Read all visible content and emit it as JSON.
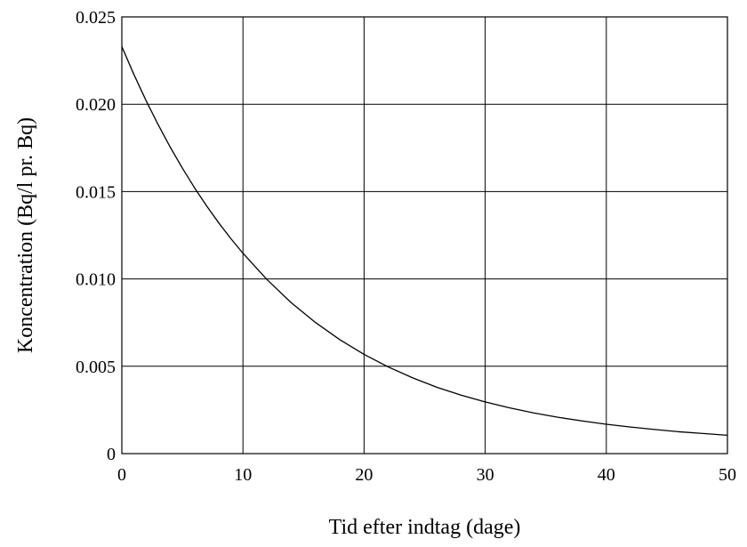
{
  "chart_data": {
    "type": "line",
    "title": "",
    "xlabel": "Tid efter indtag (dage)",
    "ylabel": "Koncentration (Bq/l pr. Bq)",
    "xlim": [
      0,
      50
    ],
    "ylim": [
      0,
      0.025
    ],
    "x_ticks": [
      0,
      10,
      20,
      30,
      40,
      50
    ],
    "x_tick_labels": [
      "0",
      "10",
      "20",
      "30",
      "40",
      "50"
    ],
    "y_ticks": [
      0,
      0.005,
      0.01,
      0.015,
      0.02,
      0.025
    ],
    "y_tick_labels": [
      "0",
      "0.005",
      "0.010",
      "0.015",
      "0.020",
      "0.025"
    ],
    "grid": true,
    "legend": "none",
    "line_color": "#000000",
    "series": [
      {
        "x": [
          0,
          1,
          2,
          3,
          4,
          5,
          6,
          7,
          8,
          9,
          10,
          12,
          14,
          16,
          18,
          20,
          22,
          24,
          26,
          28,
          30,
          32,
          34,
          36,
          38,
          40,
          42,
          44,
          46,
          48,
          50
        ],
        "values": [
          0.0233,
          0.0217,
          0.02021,
          0.01883,
          0.01754,
          0.01634,
          0.01522,
          0.01418,
          0.01321,
          0.01231,
          0.01147,
          0.00995,
          0.00863,
          0.0075,
          0.00652,
          0.00568,
          0.00496,
          0.00434,
          0.0038,
          0.00335,
          0.00296,
          0.00262,
          0.00233,
          0.00208,
          0.00187,
          0.00168,
          0.00152,
          0.00138,
          0.00125,
          0.00115,
          0.00105
        ]
      }
    ]
  }
}
